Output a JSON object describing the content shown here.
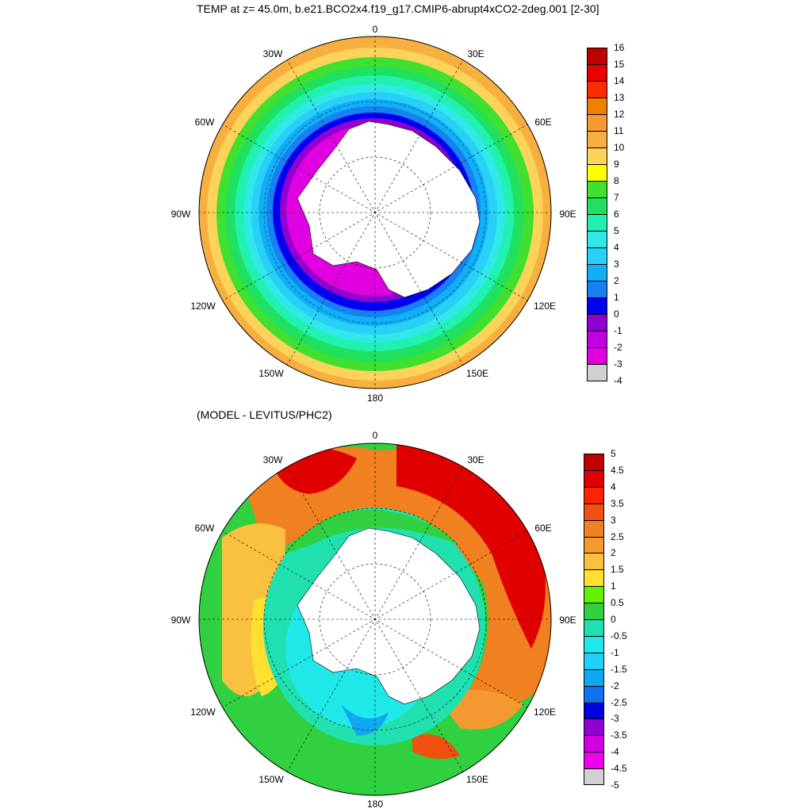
{
  "top_panel": {
    "title": "TEMP at z=  45.0m, b.e21.BCO2x4.f19_g17.CMIP6-abrupt4xCO2-2deg.001 [2-30]",
    "longitude_labels": {
      "lon_0": "0",
      "lon_30e": "30E",
      "lon_60e": "60E",
      "lon_90e": "90E",
      "lon_120e": "120E",
      "lon_150e": "150E",
      "lon_180": "180",
      "lon_150w": "150W",
      "lon_120w": "120W",
      "lon_90w": "90W",
      "lon_60w": "60W",
      "lon_30w": "30W"
    },
    "colorbar": {
      "ticks": [
        "16",
        "15",
        "14",
        "13",
        "12",
        "11",
        "10",
        "9",
        "8",
        "7",
        "6",
        "5",
        "4",
        "3",
        "2",
        "1",
        "0",
        "-1",
        "-2",
        "-3",
        "-4"
      ],
      "colors": [
        "#c00000",
        "#e60000",
        "#ff2a00",
        "#f08000",
        "#f59a33",
        "#f7b040",
        "#fdd35a",
        "#ffff00",
        "#40e030",
        "#20e060",
        "#20f0b0",
        "#30e8e8",
        "#28d0f8",
        "#10b0f8",
        "#1880f0",
        "#0000f0",
        "#9000d0",
        "#c000e0",
        "#e000e0",
        "#d0d0d0",
        "#707070"
      ]
    }
  },
  "bottom_panel": {
    "title": "(MODEL - LEVITUS/PHC2)",
    "longitude_labels": {
      "lon_0": "0",
      "lon_30e": "30E",
      "lon_60e": "60E",
      "lon_90e": "90E",
      "lon_120e": "120E",
      "lon_150e": "150E",
      "lon_180": "180",
      "lon_150w": "150W",
      "lon_120w": "120W",
      "lon_90w": "90W",
      "lon_60w": "60W",
      "lon_30w": "30W"
    },
    "colorbar": {
      "ticks": [
        "5",
        "4.5",
        "4",
        "3.5",
        "3",
        "2.5",
        "2",
        "1.5",
        "1",
        "0.5",
        "0",
        "-0.5",
        "-1",
        "-1.5",
        "-2",
        "-2.5",
        "-3",
        "-3.5",
        "-4",
        "-4.5",
        "-5"
      ],
      "colors": [
        "#c00000",
        "#e00000",
        "#ff2200",
        "#f05010",
        "#f08020",
        "#f59a30",
        "#fac040",
        "#ffe030",
        "#60f000",
        "#30d040",
        "#20e0b0",
        "#20e8e8",
        "#20d0f8",
        "#10a8f0",
        "#1070f0",
        "#0000e0",
        "#9000d0",
        "#d000e0",
        "#f000f0",
        "#d0d0d0",
        "#707070"
      ]
    }
  }
}
